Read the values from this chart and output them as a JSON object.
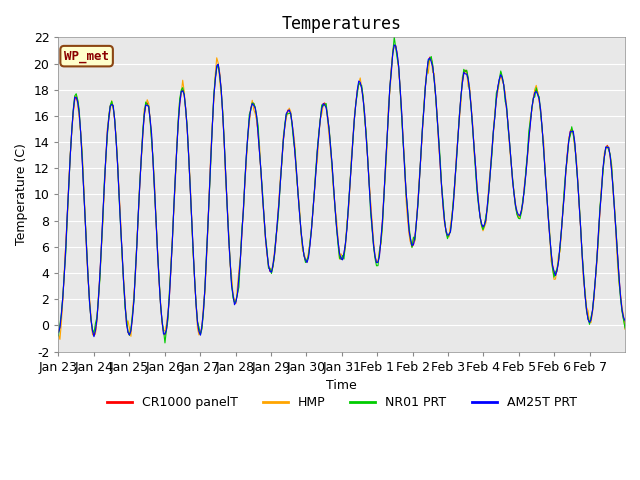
{
  "title": "Temperatures",
  "xlabel": "Time",
  "ylabel": "Temperature (C)",
  "ylim": [
    -2,
    22
  ],
  "yticks": [
    -2,
    0,
    2,
    4,
    6,
    8,
    10,
    12,
    14,
    16,
    18,
    20,
    22
  ],
  "xtick_labels": [
    "Jan 23",
    "Jan 24",
    "Jan 25",
    "Jan 26",
    "Jan 27",
    "Jan 28",
    "Jan 29",
    "Jan 30",
    "Jan 31",
    "Feb 1",
    "Feb 2",
    "Feb 3",
    "Feb 4",
    "Feb 5",
    "Feb 6",
    "Feb 7"
  ],
  "annotation_text": "WP_met",
  "annotation_facecolor": "#ffffcc",
  "annotation_edgecolor": "#8B4513",
  "annotation_textcolor": "#8B0000",
  "series_colors": [
    "#ff0000",
    "#ffa500",
    "#00cc00",
    "#0000ff"
  ],
  "series_labels": [
    "CR1000 panelT",
    "HMP",
    "NR01 PRT",
    "AM25T PRT"
  ],
  "background_color": "#e8e8e8",
  "grid_color": "#ffffff",
  "title_fontsize": 12,
  "axis_fontsize": 9,
  "legend_fontsize": 9
}
